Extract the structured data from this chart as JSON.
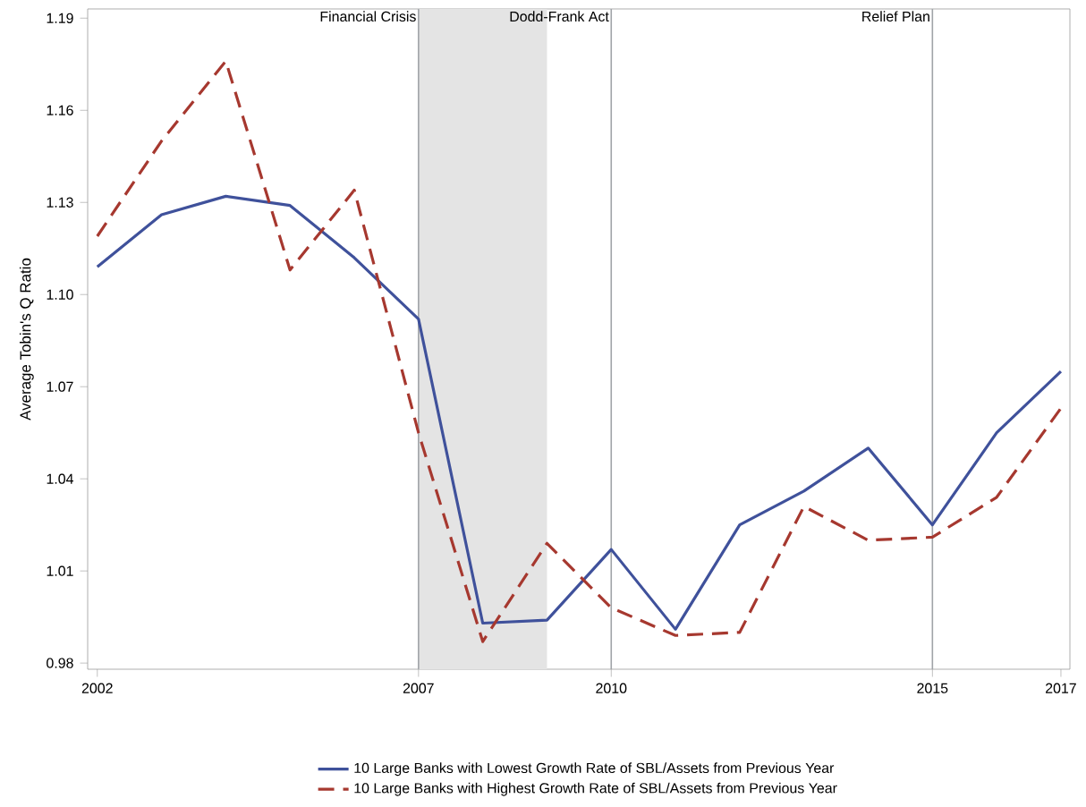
{
  "chart_data": {
    "type": "line",
    "ylabel": "Average Tobin's Q Ratio",
    "x": [
      2002,
      2003,
      2004,
      2005,
      2006,
      2007,
      2008,
      2009,
      2010,
      2011,
      2012,
      2013,
      2014,
      2015,
      2016,
      2017
    ],
    "series": [
      {
        "name": "10 Large Banks with Lowest Growth Rate of SBL/Assets from Previous Year",
        "color": "#3f519b",
        "line_style": "solid",
        "values": [
          1.109,
          1.126,
          1.132,
          1.129,
          1.112,
          1.092,
          0.993,
          0.994,
          1.017,
          0.991,
          1.025,
          1.036,
          1.05,
          1.025,
          1.055,
          1.075
        ]
      },
      {
        "name": "10 Large Banks with Highest Growth Rate of SBL/Assets from Previous Year",
        "color": "#a6382f",
        "line_style": "dashed",
        "values": [
          1.119,
          1.15,
          1.176,
          1.108,
          1.134,
          1.055,
          0.987,
          1.019,
          0.998,
          0.989,
          0.99,
          1.031,
          1.02,
          1.021,
          1.034,
          1.063
        ]
      }
    ],
    "xlim": [
      2001.85,
      2017.14
    ],
    "ylim": [
      0.978,
      1.193
    ],
    "xticks": [
      2002,
      2007,
      2010,
      2015,
      2017
    ],
    "yticks": [
      0.98,
      1.01,
      1.04,
      1.07,
      {
        "value": 1.1,
        "label": "1.10"
      },
      1.13,
      1.16,
      1.19
    ],
    "ref_lines": [
      {
        "axis": "x",
        "value": 2007,
        "label": "Financial Crisis",
        "color": "#a0a4a8"
      },
      {
        "axis": "x",
        "value": 2010,
        "label": "Dodd-Frank Act",
        "color": "#a0a4a8"
      },
      {
        "axis": "x",
        "value": 2015,
        "label": "Relief Plan",
        "color": "#a0a4a8"
      }
    ],
    "bands": [
      {
        "axis": "x",
        "from": 2007,
        "to": 2009,
        "color": "#e4e4e4"
      }
    ],
    "grid": false,
    "marker": "none",
    "legend": "bottom"
  }
}
